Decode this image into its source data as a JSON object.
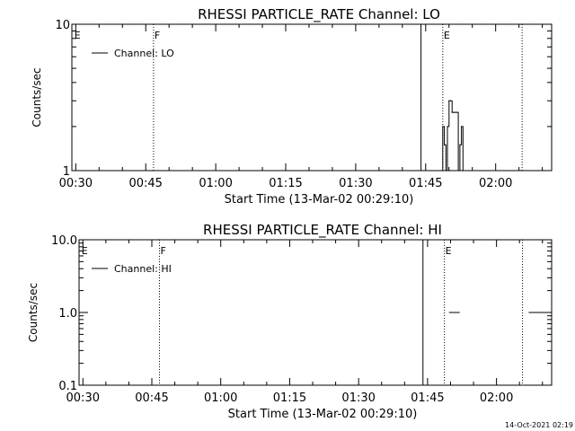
{
  "chart_data": [
    {
      "type": "line",
      "title": "RHESSI PARTICLE_RATE Channel: LO",
      "xlabel": "Start Time (13-Mar-02 00:29:10)",
      "ylabel": "Counts/sec",
      "yscale": "log",
      "ylim": [
        1,
        10
      ],
      "yticks": [
        {
          "value": 1,
          "label": "1"
        },
        {
          "value": 10,
          "label": "10"
        }
      ],
      "xlim": [
        "00:29:10",
        "02:12:00"
      ],
      "xticks": [
        "00:30",
        "00:45",
        "01:00",
        "01:15",
        "01:30",
        "01:45",
        "02:00"
      ],
      "grid": false,
      "legend": {
        "position": "top-left",
        "entries": [
          "Channel: LO"
        ]
      },
      "markers": [
        {
          "time": "00:29:30",
          "style": "none",
          "label": "E"
        },
        {
          "time": "00:46:40",
          "style": "dotted",
          "label": "F"
        },
        {
          "time": "01:44:00",
          "style": "solid",
          "label": ""
        },
        {
          "time": "01:48:40",
          "style": "dotted",
          "label": "E"
        },
        {
          "time": "02:05:40",
          "style": "dotted",
          "label": ""
        }
      ],
      "series": [
        {
          "name": "Channel: LO",
          "x": [
            "01:48:20",
            "01:48:40",
            "01:49:00",
            "01:49:20",
            "01:49:40",
            "01:50:00",
            "01:50:20",
            "01:50:40",
            "01:51:00",
            "01:51:20",
            "01:51:40",
            "01:52:00",
            "01:52:20",
            "01:52:40",
            "01:53:00"
          ],
          "values": [
            1,
            2,
            1.5,
            1,
            2,
            3,
            3,
            2.5,
            2.5,
            2.5,
            2.5,
            1,
            1.5,
            2,
            1
          ]
        }
      ]
    },
    {
      "type": "line",
      "title": "RHESSI PARTICLE_RATE Channel: HI",
      "xlabel": "Start Time (13-Mar-02 00:29:10)",
      "ylabel": "Counts/sec",
      "yscale": "log",
      "ylim": [
        0.1,
        10
      ],
      "yticks": [
        {
          "value": 0.1,
          "label": "0.1"
        },
        {
          "value": 1,
          "label": "1.0"
        },
        {
          "value": 10,
          "label": "10.0"
        }
      ],
      "xlim": [
        "00:29:10",
        "02:12:00"
      ],
      "xticks": [
        "00:30",
        "00:45",
        "01:00",
        "01:15",
        "01:30",
        "01:45",
        "02:00"
      ],
      "grid": false,
      "legend": {
        "position": "top-left",
        "entries": [
          "Channel: HI"
        ]
      },
      "markers": [
        {
          "time": "00:29:30",
          "style": "none",
          "label": "E"
        },
        {
          "time": "00:46:40",
          "style": "dotted",
          "label": "F"
        },
        {
          "time": "01:44:00",
          "style": "solid",
          "label": ""
        },
        {
          "time": "01:48:40",
          "style": "dotted",
          "label": "E"
        },
        {
          "time": "02:05:40",
          "style": "dotted",
          "label": ""
        }
      ],
      "series": [
        {
          "name": "Channel: HI",
          "x": [
            "01:49:40",
            "01:52:00",
            "02:07:00",
            "02:11:00"
          ],
          "values": [
            1,
            1,
            1,
            1
          ],
          "segments": [
            [
              0,
              1
            ],
            [
              2,
              3
            ]
          ]
        }
      ]
    }
  ],
  "footer": {
    "timestamp": "14-Oct-2021 02:19"
  }
}
